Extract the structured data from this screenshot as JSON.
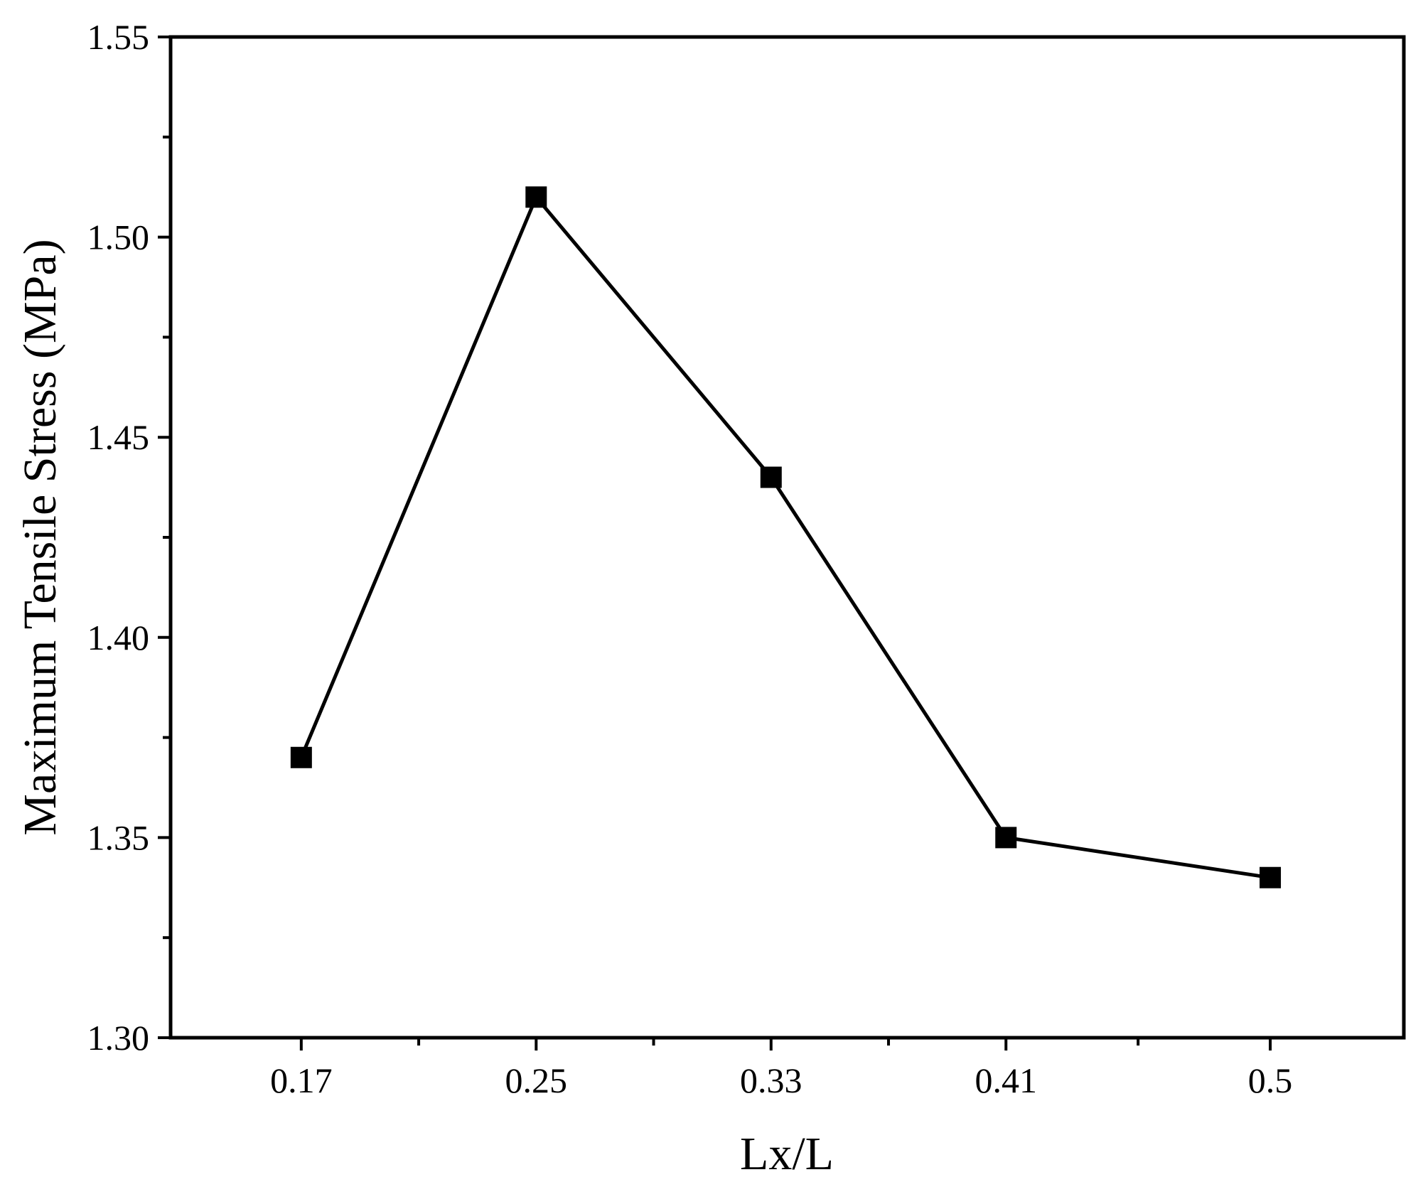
{
  "chart_data": {
    "type": "line",
    "title": "",
    "xlabel": "Lx/L",
    "ylabel": "Maximum Tensile Stress (MPa)",
    "categories": [
      "0.17",
      "0.25",
      "0.33",
      "0.41",
      "0.5"
    ],
    "x": [
      0.17,
      0.25,
      0.33,
      0.41,
      0.5
    ],
    "series": [
      {
        "values": [
          1.37,
          1.51,
          1.44,
          1.35,
          1.34
        ],
        "marker": "square",
        "color": "#000000"
      }
    ],
    "xlim": [
      0.1255,
      0.5455
    ],
    "ylim": [
      1.3,
      1.55
    ],
    "yticks": [
      "1.30",
      "1.35",
      "1.40",
      "1.45",
      "1.50",
      "1.55"
    ],
    "grid": false,
    "legend": "none"
  }
}
